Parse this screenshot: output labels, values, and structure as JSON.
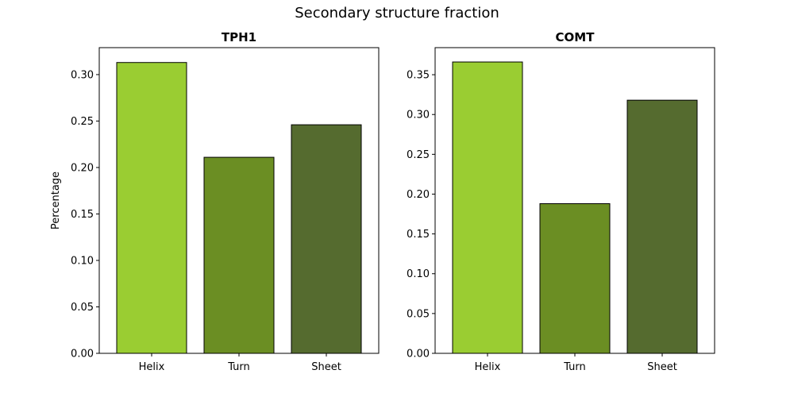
{
  "figure": {
    "title": "Secondary structure fraction"
  },
  "colors": {
    "Helix": "#9acd32",
    "Turn": "#6b8e23",
    "Sheet": "#556b2f",
    "edge": "#000000"
  },
  "chart_data": [
    {
      "type": "bar",
      "title": "TPH1",
      "categories": [
        "Helix",
        "Turn",
        "Sheet"
      ],
      "values": [
        0.313,
        0.211,
        0.246
      ],
      "xlabel": "",
      "ylabel": "Percentage",
      "ylim": [
        0,
        0.329
      ],
      "yticks": [
        0.0,
        0.05,
        0.1,
        0.15,
        0.2,
        0.25,
        0.3
      ],
      "ytick_labels": [
        "0.00",
        "0.05",
        "0.10",
        "0.15",
        "0.20",
        "0.25",
        "0.30"
      ],
      "grid": false
    },
    {
      "type": "bar",
      "title": "COMT",
      "categories": [
        "Helix",
        "Turn",
        "Sheet"
      ],
      "values": [
        0.366,
        0.188,
        0.318
      ],
      "xlabel": "",
      "ylabel": "",
      "ylim": [
        0,
        0.384
      ],
      "yticks": [
        0.0,
        0.05,
        0.1,
        0.15,
        0.2,
        0.25,
        0.3,
        0.35
      ],
      "ytick_labels": [
        "0.00",
        "0.05",
        "0.10",
        "0.15",
        "0.20",
        "0.25",
        "0.30",
        "0.35"
      ],
      "grid": false
    }
  ]
}
